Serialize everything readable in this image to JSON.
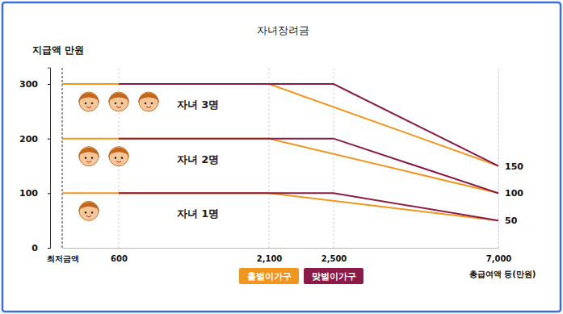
{
  "chart_data": {
    "type": "line",
    "title": "자녀장려금",
    "y_label": "지급액 만원",
    "x_label": "총급여액 등(만원)",
    "xlim": [
      0,
      7000
    ],
    "xticks": [
      {
        "value": 0,
        "label": "최저금액"
      },
      600,
      {
        "value": 2100,
        "label": "2,100"
      },
      {
        "value": 2500,
        "label": "2,500"
      },
      {
        "value": 7000,
        "label": "7,000"
      }
    ],
    "ylim": [
      0,
      330
    ],
    "yticks": [
      0,
      100,
      200,
      300
    ],
    "y2lim": [
      0,
      330
    ],
    "y2ticks": [
      50,
      100,
      150
    ],
    "grid": true,
    "legend": "bottom",
    "annotations": [
      "자녀 3명",
      "자녀 2명",
      "자녀 1명"
    ],
    "series": [
      {
        "name": "홑벌이가구",
        "color": "#f0961e",
        "x": [
          0,
          2100,
          7000
        ],
        "values": [
          300,
          300,
          150
        ]
      },
      {
        "name": "홑벌이가구",
        "color": "#f0961e",
        "x": [
          0,
          2100,
          7000
        ],
        "values": [
          200,
          200,
          100
        ]
      },
      {
        "name": "홑벌이가구",
        "color": "#f0961e",
        "x": [
          0,
          2100,
          7000
        ],
        "values": [
          100,
          100,
          50
        ]
      },
      {
        "name": "맞벌이가구",
        "color": "#8c1a46",
        "x": [
          600,
          2500,
          7000
        ],
        "values": [
          300,
          300,
          150
        ]
      },
      {
        "name": "맞벌이가구",
        "color": "#8c1a46",
        "x": [
          600,
          2500,
          7000
        ],
        "values": [
          200,
          200,
          100
        ]
      },
      {
        "name": "맞벌이가구",
        "color": "#8c1a46",
        "x": [
          600,
          2500,
          7000
        ],
        "values": [
          100,
          100,
          50
        ]
      }
    ]
  }
}
